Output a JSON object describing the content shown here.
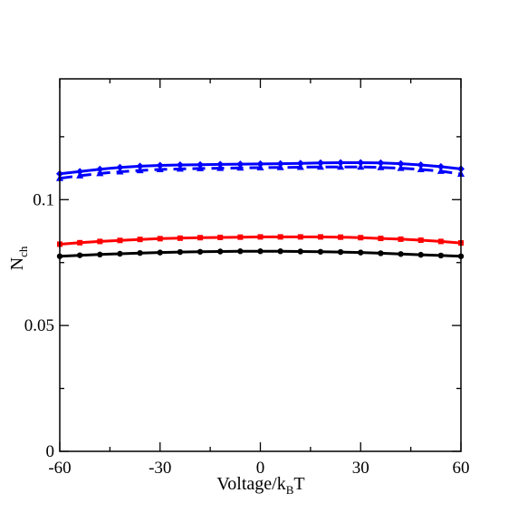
{
  "chart_data": {
    "type": "line",
    "xlabel": {
      "main": "Voltage/k",
      "sub": "B",
      "tail": "T"
    },
    "ylabel": {
      "main": "N",
      "sub": "ch"
    },
    "xlim": [
      -60,
      60
    ],
    "ylim": [
      0,
      0.148
    ],
    "x_ticks": [
      -60,
      -30,
      0,
      30,
      60
    ],
    "x_tick_labels": [
      "-60",
      "-30",
      "0",
      "30",
      "60"
    ],
    "y_ticks": [
      0,
      0.05,
      0.1
    ],
    "y_tick_labels": [
      "0",
      "0.05",
      "0.1"
    ],
    "grid": false,
    "series": [
      {
        "color": "#0000ff",
        "line": "solid",
        "marker": "diamond",
        "x": [
          -60,
          -54,
          -48,
          -42,
          -36,
          -30,
          -24,
          -18,
          -12,
          -6,
          0,
          6,
          12,
          18,
          24,
          30,
          36,
          42,
          48,
          54,
          60
        ],
        "values": [
          0.1103,
          0.1112,
          0.1121,
          0.1128,
          0.1133,
          0.1136,
          0.1138,
          0.1139,
          0.114,
          0.1141,
          0.1142,
          0.1143,
          0.1144,
          0.1146,
          0.1147,
          0.1147,
          0.1146,
          0.1143,
          0.1138,
          0.1131,
          0.1122
        ]
      },
      {
        "color": "#0000ff",
        "line": "dashed",
        "marker": "triangle",
        "x": [
          -60,
          -54,
          -48,
          -42,
          -36,
          -30,
          -24,
          -18,
          -12,
          -6,
          0,
          6,
          12,
          18,
          24,
          30,
          36,
          42,
          48,
          54,
          60
        ],
        "values": [
          0.1085,
          0.1095,
          0.1104,
          0.1111,
          0.1116,
          0.112,
          0.1122,
          0.1124,
          0.1125,
          0.1126,
          0.1127,
          0.1128,
          0.1129,
          0.113,
          0.113,
          0.113,
          0.1128,
          0.1125,
          0.112,
          0.1113,
          0.1102
        ]
      },
      {
        "color": "#ff0000",
        "line": "solid",
        "marker": "square",
        "x": [
          -60,
          -54,
          -48,
          -42,
          -36,
          -30,
          -24,
          -18,
          -12,
          -6,
          0,
          6,
          12,
          18,
          24,
          30,
          36,
          42,
          48,
          54,
          60
        ],
        "values": [
          0.0823,
          0.0829,
          0.0834,
          0.0838,
          0.0842,
          0.0845,
          0.0847,
          0.0849,
          0.085,
          0.0851,
          0.0852,
          0.0852,
          0.0852,
          0.0852,
          0.0851,
          0.0849,
          0.0846,
          0.0843,
          0.0839,
          0.0834,
          0.0828
        ]
      },
      {
        "color": "#000000",
        "line": "solid",
        "marker": "circle",
        "x": [
          -60,
          -54,
          -48,
          -42,
          -36,
          -30,
          -24,
          -18,
          -12,
          -6,
          0,
          6,
          12,
          18,
          24,
          30,
          36,
          42,
          48,
          54,
          60
        ],
        "values": [
          0.0775,
          0.0779,
          0.0782,
          0.0785,
          0.0788,
          0.079,
          0.0792,
          0.0793,
          0.0794,
          0.0795,
          0.0795,
          0.0795,
          0.0794,
          0.0793,
          0.0792,
          0.079,
          0.0787,
          0.0784,
          0.0781,
          0.0778,
          0.0775
        ]
      }
    ]
  }
}
